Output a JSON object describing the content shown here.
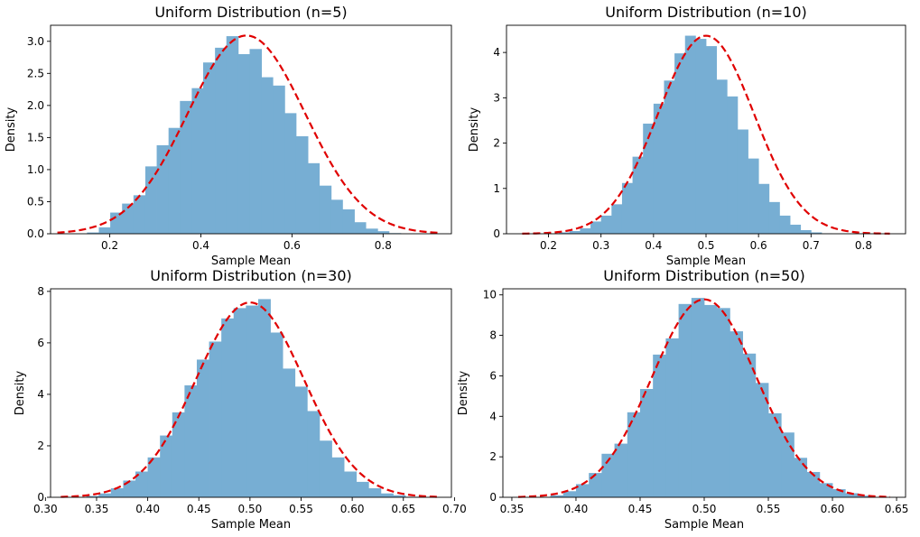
{
  "colors": {
    "histogram": "#77aed3",
    "curve": "#e00000",
    "axis": "#000000",
    "background": "#ffffff"
  },
  "chart_data": [
    {
      "type": "bar",
      "title": "Uniform Distribution (n=5)",
      "xlabel": "Sample Mean",
      "ylabel": "Density",
      "xlim": [
        0.07,
        0.95
      ],
      "ylim": [
        0,
        3.25
      ],
      "xticks": [
        0.2,
        0.4,
        0.6,
        0.8
      ],
      "yticks": [
        0.0,
        0.5,
        1.0,
        1.5,
        2.0,
        2.5,
        3.0
      ],
      "ytick_decimals": 1,
      "xtick_decimals": 1,
      "bin_edges": [
        0.15,
        0.176,
        0.201,
        0.227,
        0.252,
        0.278,
        0.303,
        0.329,
        0.354,
        0.38,
        0.405,
        0.431,
        0.456,
        0.482,
        0.507,
        0.533,
        0.558,
        0.584,
        0.609,
        0.635,
        0.66,
        0.686,
        0.711,
        0.737,
        0.762,
        0.788,
        0.813,
        0.839,
        0.864
      ],
      "bin_heights": [
        0.02,
        0.1,
        0.33,
        0.47,
        0.6,
        1.05,
        1.38,
        1.65,
        2.07,
        2.27,
        2.67,
        2.9,
        3.08,
        2.8,
        2.88,
        2.44,
        2.31,
        1.88,
        1.52,
        1.1,
        0.75,
        0.53,
        0.38,
        0.18,
        0.08,
        0.04,
        0.01,
        0.0
      ],
      "curve": {
        "mean": 0.5,
        "sd": 0.1291,
        "xrange": [
          0.085,
          0.925
        ]
      }
    },
    {
      "type": "bar",
      "title": "Uniform Distribution (n=10)",
      "xlabel": "Sample Mean",
      "ylabel": "Density",
      "xlim": [
        0.12,
        0.88
      ],
      "ylim": [
        0,
        4.6
      ],
      "xticks": [
        0.2,
        0.3,
        0.4,
        0.5,
        0.6,
        0.7,
        0.8
      ],
      "yticks": [
        0,
        1,
        2,
        3,
        4
      ],
      "ytick_decimals": 0,
      "xtick_decimals": 1,
      "bin_edges": [
        0.22,
        0.24,
        0.26,
        0.28,
        0.3,
        0.32,
        0.34,
        0.36,
        0.38,
        0.4,
        0.42,
        0.44,
        0.46,
        0.48,
        0.5,
        0.52,
        0.54,
        0.56,
        0.58,
        0.6,
        0.62,
        0.64,
        0.66,
        0.68,
        0.7,
        0.72,
        0.74,
        0.76,
        0.78
      ],
      "bin_heights": [
        0.03,
        0.06,
        0.12,
        0.27,
        0.4,
        0.65,
        1.12,
        1.7,
        2.43,
        2.87,
        3.38,
        3.98,
        4.37,
        4.3,
        4.14,
        3.4,
        3.03,
        2.3,
        1.66,
        1.1,
        0.7,
        0.4,
        0.2,
        0.08,
        0.03,
        0.01,
        0.0,
        0.0
      ],
      "curve": {
        "mean": 0.5,
        "sd": 0.0913,
        "xrange": [
          0.15,
          0.85
        ]
      }
    },
    {
      "type": "bar",
      "title": "Uniform Distribution (n=30)",
      "xlabel": "Sample Mean",
      "ylabel": "Density",
      "xlim": [
        0.305,
        0.697
      ],
      "ylim": [
        0,
        8.1
      ],
      "xticks": [
        0.3,
        0.35,
        0.4,
        0.45,
        0.5,
        0.55,
        0.6,
        0.65,
        0.7
      ],
      "yticks": [
        0,
        2,
        4,
        6,
        8
      ],
      "ytick_decimals": 0,
      "xtick_decimals": 2,
      "bin_edges": [
        0.34,
        0.352,
        0.364,
        0.376,
        0.388,
        0.4,
        0.412,
        0.424,
        0.436,
        0.448,
        0.46,
        0.472,
        0.484,
        0.496,
        0.508,
        0.52,
        0.532,
        0.544,
        0.556,
        0.568,
        0.58,
        0.592,
        0.604,
        0.616,
        0.628,
        0.64,
        0.652,
        0.664
      ],
      "bin_heights": [
        0.05,
        0.15,
        0.35,
        0.65,
        1.0,
        1.55,
        2.4,
        3.3,
        4.35,
        5.35,
        6.05,
        6.95,
        7.35,
        7.45,
        7.7,
        6.4,
        5.0,
        4.3,
        3.35,
        2.2,
        1.55,
        1.0,
        0.6,
        0.35,
        0.15,
        0.08,
        0.02
      ],
      "curve": {
        "mean": 0.5,
        "sd": 0.0527,
        "xrange": [
          0.315,
          0.685
        ]
      }
    },
    {
      "type": "bar",
      "title": "Uniform Distribution (n=50)",
      "xlabel": "Sample Mean",
      "ylabel": "Density",
      "xlim": [
        0.343,
        0.657
      ],
      "ylim": [
        0,
        10.3
      ],
      "xticks": [
        0.35,
        0.4,
        0.45,
        0.5,
        0.55,
        0.6,
        0.65
      ],
      "yticks": [
        0,
        2,
        4,
        6,
        8,
        10
      ],
      "ytick_decimals": 0,
      "xtick_decimals": 2,
      "bin_edges": [
        0.38,
        0.39,
        0.4,
        0.41,
        0.42,
        0.43,
        0.44,
        0.45,
        0.46,
        0.47,
        0.48,
        0.49,
        0.5,
        0.51,
        0.52,
        0.53,
        0.54,
        0.55,
        0.56,
        0.57,
        0.58,
        0.59,
        0.6,
        0.61,
        0.62,
        0.63
      ],
      "bin_heights": [
        0.1,
        0.3,
        0.65,
        1.2,
        2.15,
        2.65,
        4.2,
        5.35,
        7.05,
        7.85,
        9.55,
        9.85,
        9.5,
        9.35,
        8.2,
        7.1,
        5.65,
        4.15,
        3.2,
        1.95,
        1.25,
        0.7,
        0.4,
        0.2,
        0.08
      ],
      "curve": {
        "mean": 0.5,
        "sd": 0.0408,
        "xrange": [
          0.355,
          0.645
        ]
      }
    }
  ]
}
